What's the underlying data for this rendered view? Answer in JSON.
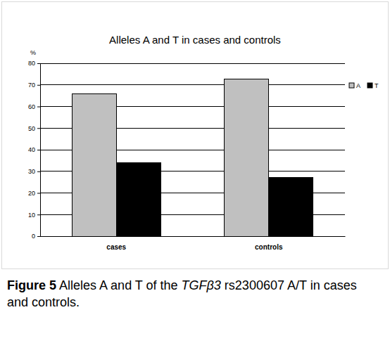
{
  "chart_data": {
    "type": "bar",
    "title": "Alleles A and T in cases and controls",
    "y_label": "%",
    "categories": [
      "cases",
      "controls"
    ],
    "series": [
      {
        "name": "A",
        "color": "#c0c0c0",
        "values": [
          65.9,
          72.7
        ]
      },
      {
        "name": "T",
        "color": "#000000",
        "values": [
          34.1,
          27.3
        ]
      }
    ],
    "ylim": [
      0,
      80
    ],
    "yticks": [
      0,
      10,
      20,
      30,
      40,
      50,
      60,
      70,
      80
    ],
    "grid": true,
    "legend": "top-right",
    "caption": "Figure 5 Alleles A and T of the TGFβ3 rs2300607 A/T in cases and controls."
  }
}
